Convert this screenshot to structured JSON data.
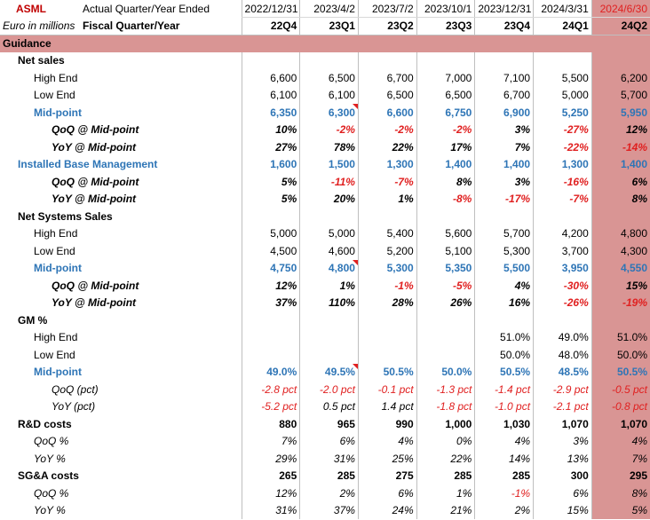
{
  "header": {
    "company": "ASML",
    "actual_label": "Actual Quarter/Year Ended",
    "units": "Euro in millions",
    "fiscal_label": "Fiscal Quarter/Year",
    "dates": [
      "2022/12/31",
      "2023/4/2",
      "2023/7/2",
      "2023/10/1",
      "2023/12/31",
      "2024/3/31",
      "2024/6/30"
    ],
    "quarters": [
      "22Q4",
      "23Q1",
      "23Q2",
      "23Q3",
      "23Q4",
      "24Q1",
      "24Q2"
    ]
  },
  "section_title": "Guidance",
  "rows": [
    {
      "label": "Net sales",
      "style": "section",
      "indent": 1,
      "values": [
        "",
        "",
        "",
        "",
        "",
        "",
        ""
      ]
    },
    {
      "label": "High End",
      "style": "normal",
      "indent": 2,
      "values": [
        "6,600",
        "6,500",
        "6,700",
        "7,000",
        "7,100",
        "5,500",
        "6,200"
      ]
    },
    {
      "label": "Low End",
      "style": "normal",
      "indent": 2,
      "values": [
        "6,100",
        "6,100",
        "6,500",
        "6,500",
        "6,700",
        "5,000",
        "5,700"
      ]
    },
    {
      "label": "Mid-point",
      "style": "blue",
      "indent": 2,
      "values": [
        "6,350",
        "6,300",
        "6,600",
        "6,750",
        "6,900",
        "5,250",
        "5,950"
      ],
      "flag": 1
    },
    {
      "label": "QoQ @ Mid-point",
      "style": "bi",
      "indent": 3,
      "values": [
        "10%",
        "-2%",
        "-2%",
        "-2%",
        "3%",
        "-27%",
        "12%"
      ]
    },
    {
      "label": "YoY @ Mid-point",
      "style": "bi",
      "indent": 3,
      "values": [
        "27%",
        "78%",
        "22%",
        "17%",
        "7%",
        "-22%",
        "-14%"
      ]
    },
    {
      "label": "Installed Base Management",
      "style": "blue",
      "indent": 1,
      "values": [
        "1,600",
        "1,500",
        "1,300",
        "1,400",
        "1,400",
        "1,300",
        "1,400"
      ]
    },
    {
      "label": "QoQ @ Mid-point",
      "style": "bi",
      "indent": 3,
      "values": [
        "5%",
        "-11%",
        "-7%",
        "8%",
        "3%",
        "-16%",
        "6%"
      ]
    },
    {
      "label": "YoY @ Mid-point",
      "style": "bi",
      "indent": 3,
      "values": [
        "5%",
        "20%",
        "1%",
        "-8%",
        "-17%",
        "-7%",
        "8%"
      ]
    },
    {
      "label": "Net Systems Sales",
      "style": "section",
      "indent": 1,
      "values": [
        "",
        "",
        "",
        "",
        "",
        "",
        ""
      ]
    },
    {
      "label": "High End",
      "style": "normal",
      "indent": 2,
      "values": [
        "5,000",
        "5,000",
        "5,400",
        "5,600",
        "5,700",
        "4,200",
        "4,800"
      ]
    },
    {
      "label": "Low End",
      "style": "normal",
      "indent": 2,
      "values": [
        "4,500",
        "4,600",
        "5,200",
        "5,100",
        "5,300",
        "3,700",
        "4,300"
      ]
    },
    {
      "label": "Mid-point",
      "style": "blue",
      "indent": 2,
      "values": [
        "4,750",
        "4,800",
        "5,300",
        "5,350",
        "5,500",
        "3,950",
        "4,550"
      ],
      "flag": 1
    },
    {
      "label": "QoQ @ Mid-point",
      "style": "bi",
      "indent": 3,
      "values": [
        "12%",
        "1%",
        "-1%",
        "-5%",
        "4%",
        "-30%",
        "15%"
      ]
    },
    {
      "label": "YoY @ Mid-point",
      "style": "bi",
      "indent": 3,
      "values": [
        "37%",
        "110%",
        "28%",
        "26%",
        "16%",
        "-26%",
        "-19%"
      ]
    },
    {
      "label": "GM %",
      "style": "section",
      "indent": 1,
      "values": [
        "",
        "",
        "",
        "",
        "",
        "",
        ""
      ]
    },
    {
      "label": "High End",
      "style": "normal",
      "indent": 2,
      "values": [
        "",
        "",
        "",
        "",
        "51.0%",
        "49.0%",
        "51.0%"
      ]
    },
    {
      "label": "Low End",
      "style": "normal",
      "indent": 2,
      "values": [
        "",
        "",
        "",
        "",
        "50.0%",
        "48.0%",
        "50.0%"
      ]
    },
    {
      "label": "Mid-point",
      "style": "blue",
      "indent": 2,
      "values": [
        "49.0%",
        "49.5%",
        "50.5%",
        "50.0%",
        "50.5%",
        "48.5%",
        "50.5%"
      ],
      "flag": 1
    },
    {
      "label": "QoQ (pct)",
      "style": "ital",
      "indent": 3,
      "values": [
        "-2.8 pct",
        "-2.0 pct",
        "-0.1 pct",
        "-1.3 pct",
        "-1.4 pct",
        "-2.9 pct",
        "-0.5 pct"
      ]
    },
    {
      "label": "YoY (pct)",
      "style": "ital",
      "indent": 3,
      "values": [
        "-5.2 pct",
        "0.5 pct",
        "1.4 pct",
        "-1.8 pct",
        "-1.0 pct",
        "-2.1 pct",
        "-0.8 pct"
      ]
    },
    {
      "label": "R&D costs",
      "style": "section",
      "indent": 1,
      "values": [
        "880",
        "965",
        "990",
        "1,000",
        "1,030",
        "1,070",
        "1,070"
      ]
    },
    {
      "label": "QoQ %",
      "style": "ital",
      "indent": 2,
      "values": [
        "7%",
        "6%",
        "4%",
        "0%",
        "4%",
        "3%",
        "4%"
      ]
    },
    {
      "label": "YoY %",
      "style": "ital",
      "indent": 2,
      "values": [
        "29%",
        "31%",
        "25%",
        "22%",
        "14%",
        "13%",
        "7%"
      ]
    },
    {
      "label": "SG&A costs",
      "style": "section",
      "indent": 1,
      "values": [
        "265",
        "285",
        "275",
        "285",
        "285",
        "300",
        "295"
      ]
    },
    {
      "label": "QoQ %",
      "style": "ital",
      "indent": 2,
      "values": [
        "12%",
        "2%",
        "6%",
        "1%",
        "-1%",
        "6%",
        "8%"
      ]
    },
    {
      "label": "YoY %",
      "style": "ital",
      "indent": 2,
      "values": [
        "31%",
        "37%",
        "24%",
        "21%",
        "2%",
        "15%",
        "5%"
      ]
    }
  ],
  "colors": {
    "highlight": "#d99594",
    "blue": "#2e75b6",
    "negative": "#e02020",
    "brand": "#c00000"
  }
}
